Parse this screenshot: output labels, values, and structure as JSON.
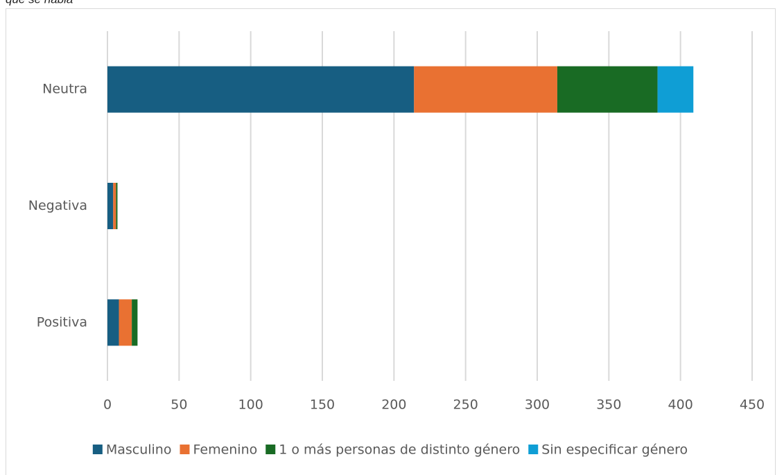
{
  "chart_data": {
    "type": "stacked_barh",
    "title": "que se habla",
    "categories": [
      "Neutra",
      "Negativa",
      "Positiva"
    ],
    "series": [
      {
        "name": "Masculino",
        "color": "#175e82",
        "values": [
          214,
          4,
          8
        ]
      },
      {
        "name": "Femenino",
        "color": "#e97132",
        "values": [
          100,
          2,
          9
        ]
      },
      {
        "name": "1 o más personas de distinto género",
        "color": "#196b24",
        "values": [
          70,
          1,
          4
        ]
      },
      {
        "name": "Sin especificar género",
        "color": "#0f9ed5",
        "values": [
          25,
          0,
          0
        ]
      }
    ],
    "xlim": [
      0,
      450
    ],
    "xticks": [
      0,
      50,
      100,
      150,
      200,
      250,
      300,
      350,
      400,
      450
    ],
    "grid": true,
    "legend": "bottom"
  }
}
